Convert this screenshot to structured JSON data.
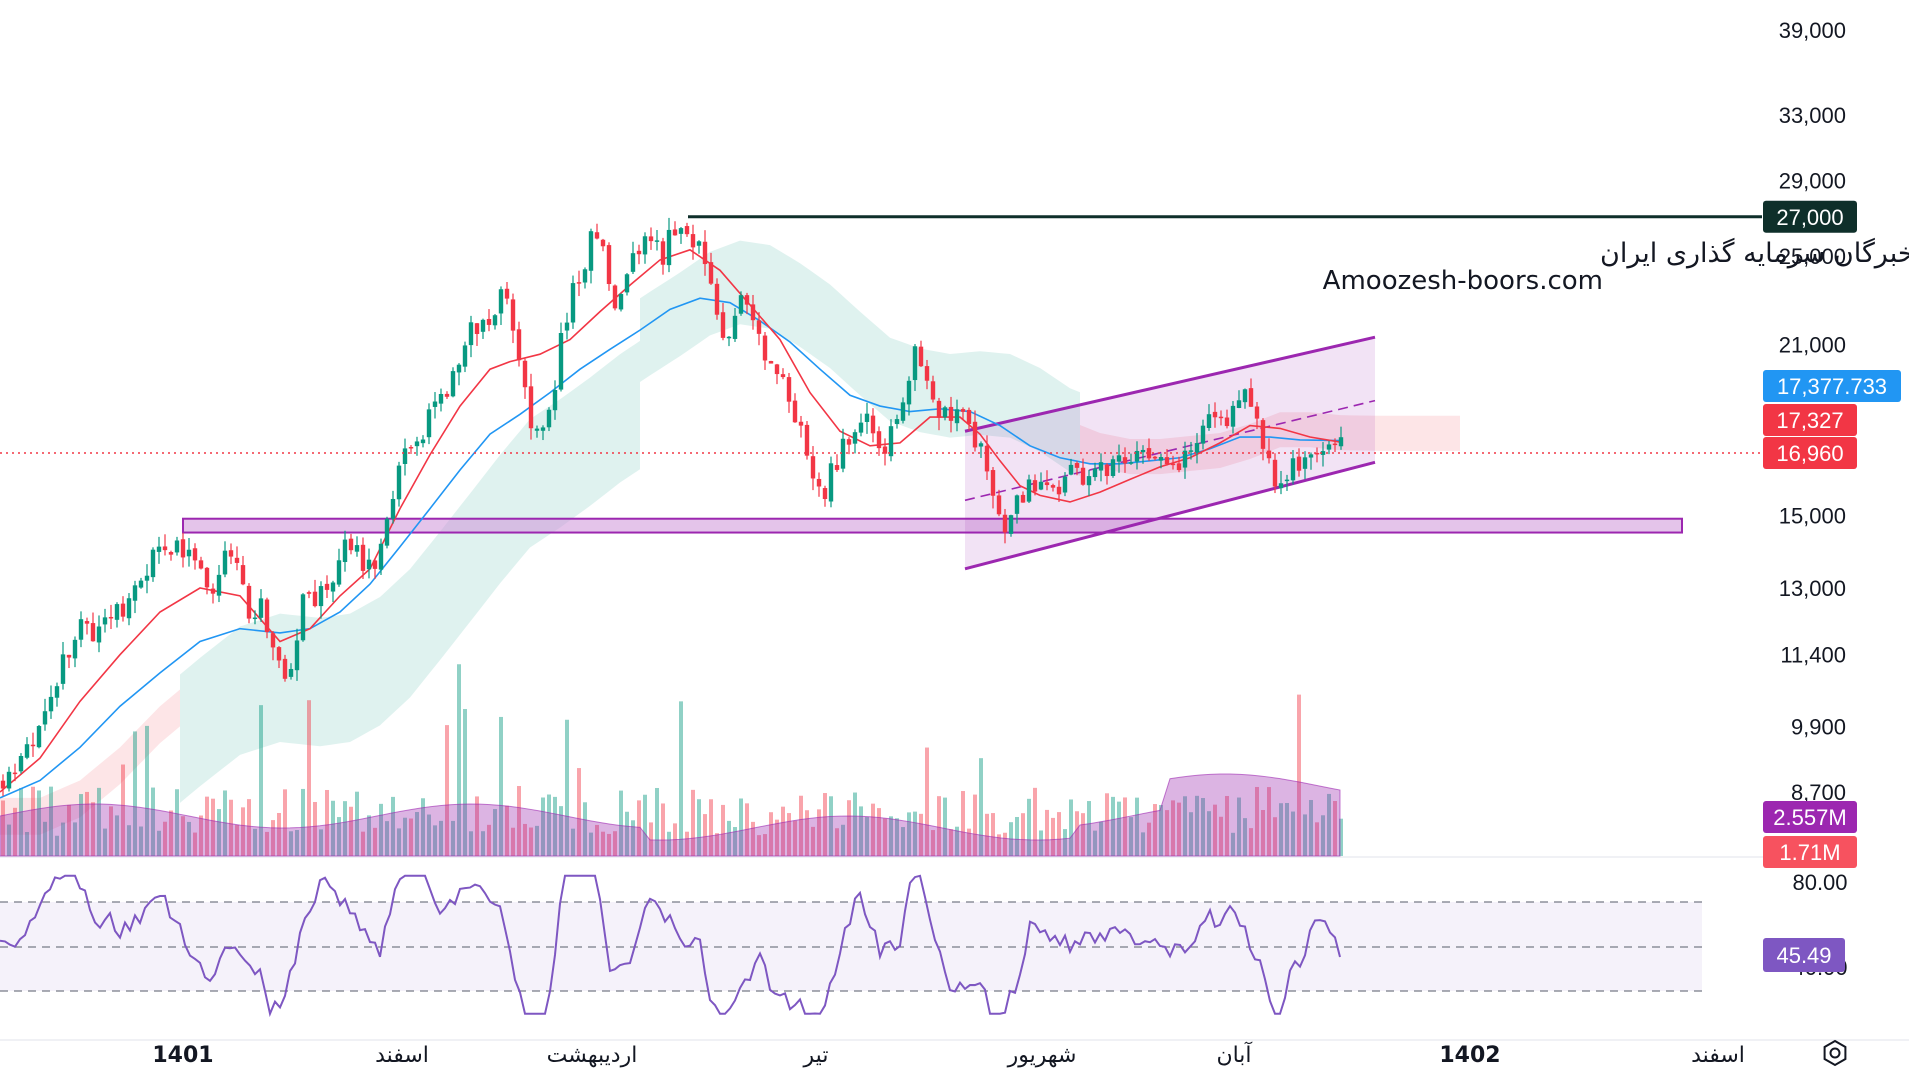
{
  "watermark": {
    "line1": "انجمن خبرگان سرمایه گذاری ایران",
    "line2": "Amoozesh-boors.com"
  },
  "price_axis": {
    "ticks": [
      "39,000",
      "33,000",
      "29,000",
      "25,000",
      "21,000",
      "15,000",
      "13,000",
      "11,400",
      "9,900",
      "8,700"
    ],
    "badges": [
      {
        "name": "resistance-level-badge",
        "value": "27,000",
        "color": "#0e2f2a"
      },
      {
        "name": "ma-value-badge",
        "value": "17,377.733",
        "color": "#2196f3"
      },
      {
        "name": "prev-close-badge",
        "value": "17,327",
        "color": "#f23645"
      },
      {
        "name": "last-price-badge",
        "value": "16,960",
        "color": "#f23645"
      },
      {
        "name": "volume-ma-badge",
        "value": "2.557M",
        "color": "#9c27b0"
      },
      {
        "name": "volume-badge",
        "value": "1.71M",
        "color": "#f7525f"
      }
    ]
  },
  "rsi_axis": {
    "ticks": [
      "80.00",
      "40.00"
    ],
    "badge": {
      "value": "45.49",
      "color": "#7e57c2"
    }
  },
  "time_axis": {
    "labels": [
      "1401",
      "اسفند",
      "اردیبهشت",
      "تیر",
      "شهریور",
      "آبان",
      "1402",
      "اسفند"
    ]
  },
  "settings_icon": "settings-icon",
  "colors": {
    "up": "#089981",
    "down": "#f23645",
    "ma_fast": "#f23645",
    "ma_slow": "#2196f3",
    "channel": "#9c27b0",
    "rsi": "#7e57c2",
    "resistance": "#0e2f2a"
  },
  "chart_data": {
    "type": "candlestick",
    "scale": "log",
    "price_ticks": [
      39000,
      33000,
      29000,
      25000,
      21000,
      15000,
      13000,
      11400,
      9900,
      8700
    ],
    "resistance_level": 27000,
    "support_zone": [
      14500,
      14900
    ],
    "last_price": 16960,
    "ma_value": 17377.733,
    "prev_close": 17327,
    "volume": "1.71M",
    "volume_ma": "2.557M",
    "rsi_last": 45.49,
    "rsi_levels": [
      70,
      50,
      30
    ],
    "close_path": [
      [
        0,
        8900
      ],
      [
        15,
        9000
      ],
      [
        30,
        9600
      ],
      [
        40,
        10000
      ],
      [
        52,
        10800
      ],
      [
        60,
        11400
      ],
      [
        70,
        11700
      ],
      [
        80,
        12000
      ],
      [
        90,
        11900
      ],
      [
        100,
        12300
      ],
      [
        110,
        12600
      ],
      [
        120,
        12400
      ],
      [
        130,
        12700
      ],
      [
        140,
        13300
      ],
      [
        150,
        14100
      ],
      [
        160,
        14300
      ],
      [
        170,
        14100
      ],
      [
        180,
        14000
      ],
      [
        190,
        13700
      ],
      [
        200,
        13400
      ],
      [
        210,
        13100
      ],
      [
        220,
        13600
      ],
      [
        230,
        13900
      ],
      [
        240,
        12800
      ],
      [
        250,
        12200
      ],
      [
        260,
        12500
      ],
      [
        270,
        11600
      ],
      [
        280,
        10800
      ],
      [
        290,
        11300
      ],
      [
        300,
        12800
      ],
      [
        310,
        12700
      ],
      [
        320,
        12900
      ],
      [
        330,
        13300
      ],
      [
        340,
        14500
      ],
      [
        350,
        14200
      ],
      [
        360,
        13600
      ],
      [
        370,
        13300
      ],
      [
        380,
        14200
      ],
      [
        390,
        15700
      ],
      [
        400,
        16800
      ],
      [
        410,
        17400
      ],
      [
        420,
        17800
      ],
      [
        430,
        18400
      ],
      [
        440,
        18900
      ],
      [
        450,
        19800
      ],
      [
        460,
        20600
      ],
      [
        470,
        21700
      ],
      [
        480,
        21900
      ],
      [
        490,
        22300
      ],
      [
        500,
        23400
      ],
      [
        510,
        21200
      ],
      [
        520,
        19200
      ],
      [
        530,
        18000
      ],
      [
        540,
        17700
      ],
      [
        550,
        19000
      ],
      [
        560,
        21500
      ],
      [
        570,
        23500
      ],
      [
        580,
        24600
      ],
      [
        590,
        26200
      ],
      [
        600,
        25000
      ],
      [
        610,
        22000
      ],
      [
        620,
        23000
      ],
      [
        630,
        24700
      ],
      [
        640,
        26000
      ],
      [
        650,
        25500
      ],
      [
        660,
        25000
      ],
      [
        670,
        26500
      ],
      [
        680,
        26700
      ],
      [
        690,
        26000
      ],
      [
        700,
        25000
      ],
      [
        710,
        23200
      ],
      [
        720,
        21500
      ],
      [
        730,
        22000
      ],
      [
        740,
        22800
      ],
      [
        750,
        21500
      ],
      [
        760,
        21000
      ],
      [
        770,
        19700
      ],
      [
        780,
        19500
      ],
      [
        790,
        18500
      ],
      [
        800,
        17800
      ],
      [
        810,
        16200
      ],
      [
        820,
        15600
      ],
      [
        830,
        16400
      ],
      [
        840,
        17300
      ],
      [
        850,
        17700
      ],
      [
        860,
        18300
      ],
      [
        870,
        17600
      ],
      [
        880,
        16900
      ],
      [
        890,
        18000
      ],
      [
        900,
        18600
      ],
      [
        910,
        21000
      ],
      [
        920,
        20500
      ],
      [
        930,
        19300
      ],
      [
        940,
        18200
      ],
      [
        950,
        18300
      ],
      [
        960,
        18100
      ],
      [
        970,
        17600
      ],
      [
        980,
        16800
      ],
      [
        990,
        15300
      ],
      [
        1000,
        14700
      ],
      [
        1010,
        15200
      ],
      [
        1020,
        15700
      ],
      [
        1030,
        16100
      ],
      [
        1040,
        15600
      ],
      [
        1050,
        15800
      ],
      [
        1060,
        16100
      ],
      [
        1070,
        16200
      ],
      [
        1080,
        16000
      ],
      [
        1090,
        16400
      ],
      [
        1100,
        16500
      ],
      [
        1110,
        16700
      ],
      [
        1120,
        17000
      ],
      [
        1130,
        16900
      ],
      [
        1140,
        16700
      ],
      [
        1150,
        17100
      ],
      [
        1160,
        16800
      ],
      [
        1170,
        16500
      ],
      [
        1180,
        16700
      ],
      [
        1190,
        17000
      ],
      [
        1200,
        17800
      ],
      [
        1210,
        18100
      ],
      [
        1220,
        17900
      ],
      [
        1230,
        18700
      ],
      [
        1240,
        19200
      ],
      [
        1250,
        18100
      ],
      [
        1260,
        17400
      ],
      [
        1270,
        16100
      ],
      [
        1280,
        15900
      ],
      [
        1290,
        16600
      ],
      [
        1300,
        16800
      ],
      [
        1310,
        16700
      ],
      [
        1320,
        17100
      ],
      [
        1330,
        17500
      ],
      [
        1340,
        16960
      ]
    ],
    "ma_fast_path": [
      [
        0,
        8700
      ],
      [
        40,
        9300
      ],
      [
        80,
        10400
      ],
      [
        120,
        11400
      ],
      [
        160,
        12400
      ],
      [
        200,
        13000
      ],
      [
        240,
        12800
      ],
      [
        280,
        11700
      ],
      [
        310,
        12000
      ],
      [
        340,
        12800
      ],
      [
        370,
        13500
      ],
      [
        400,
        15200
      ],
      [
        430,
        16900
      ],
      [
        460,
        18600
      ],
      [
        490,
        20000
      ],
      [
        510,
        20300
      ],
      [
        540,
        20600
      ],
      [
        570,
        21200
      ],
      [
        600,
        22400
      ],
      [
        630,
        23600
      ],
      [
        660,
        24800
      ],
      [
        690,
        25300
      ],
      [
        720,
        24300
      ],
      [
        750,
        22700
      ],
      [
        780,
        21200
      ],
      [
        810,
        19100
      ],
      [
        840,
        17700
      ],
      [
        870,
        17200
      ],
      [
        900,
        17300
      ],
      [
        930,
        18200
      ],
      [
        960,
        18200
      ],
      [
        980,
        17600
      ],
      [
        1000,
        16700
      ],
      [
        1020,
        15900
      ],
      [
        1040,
        15600
      ],
      [
        1070,
        15400
      ],
      [
        1100,
        15700
      ],
      [
        1130,
        16100
      ],
      [
        1160,
        16500
      ],
      [
        1190,
        16800
      ],
      [
        1220,
        17300
      ],
      [
        1250,
        17900
      ],
      [
        1280,
        17800
      ],
      [
        1310,
        17500
      ],
      [
        1340,
        17327
      ]
    ],
    "ma_slow_path": [
      [
        0,
        8600
      ],
      [
        40,
        8900
      ],
      [
        80,
        9500
      ],
      [
        120,
        10300
      ],
      [
        160,
        11000
      ],
      [
        200,
        11700
      ],
      [
        240,
        12000
      ],
      [
        280,
        11900
      ],
      [
        310,
        12000
      ],
      [
        340,
        12400
      ],
      [
        370,
        13100
      ],
      [
        400,
        14100
      ],
      [
        430,
        15200
      ],
      [
        460,
        16400
      ],
      [
        490,
        17600
      ],
      [
        520,
        18300
      ],
      [
        550,
        19100
      ],
      [
        580,
        20000
      ],
      [
        610,
        20800
      ],
      [
        640,
        21600
      ],
      [
        670,
        22500
      ],
      [
        700,
        23000
      ],
      [
        730,
        22800
      ],
      [
        760,
        22000
      ],
      [
        790,
        21100
      ],
      [
        820,
        20000
      ],
      [
        850,
        19000
      ],
      [
        880,
        18600
      ],
      [
        910,
        18400
      ],
      [
        940,
        18500
      ],
      [
        970,
        18400
      ],
      [
        1000,
        17900
      ],
      [
        1030,
        17200
      ],
      [
        1060,
        16800
      ],
      [
        1090,
        16600
      ],
      [
        1120,
        16600
      ],
      [
        1150,
        16700
      ],
      [
        1180,
        16800
      ],
      [
        1210,
        17100
      ],
      [
        1240,
        17500
      ],
      [
        1270,
        17500
      ],
      [
        1300,
        17400
      ],
      [
        1340,
        17377.733
      ]
    ],
    "channel": {
      "upper": [
        [
          965,
          17700
        ],
        [
          1375,
          21300
        ]
      ],
      "lower": [
        [
          965,
          13500
        ],
        [
          1375,
          16650
        ]
      ],
      "mid": [
        [
          965,
          15450
        ],
        [
          1375,
          18800
        ]
      ]
    }
  }
}
